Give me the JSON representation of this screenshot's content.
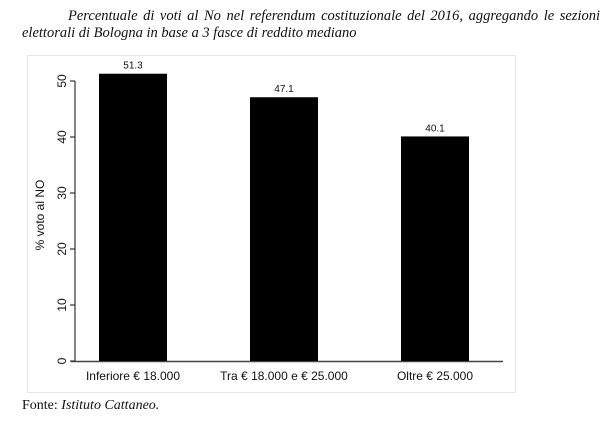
{
  "title": "Percentuale di voti al No nel referendum costituzionale del 2016, aggregando le sezioni elettorali di Bologna in base a 3 fasce di reddito mediano",
  "source": {
    "label": "Fonte:",
    "value": "Istituto Cattaneo."
  },
  "chart_data": {
    "type": "bar",
    "categories": [
      "Inferiore  € 18.000",
      "Tra € 18.000 e € 25.000",
      "Oltre € 25.000"
    ],
    "values": [
      51.3,
      47.1,
      40.1
    ],
    "data_labels": [
      "51.3",
      "47.1",
      "40.1"
    ],
    "title": "",
    "xlabel": "",
    "ylabel": "% voto al NO",
    "ylim": [
      0,
      54
    ],
    "yticks": [
      0,
      10,
      20,
      30,
      40,
      50
    ],
    "grid": false,
    "bar_color": "#000000"
  }
}
